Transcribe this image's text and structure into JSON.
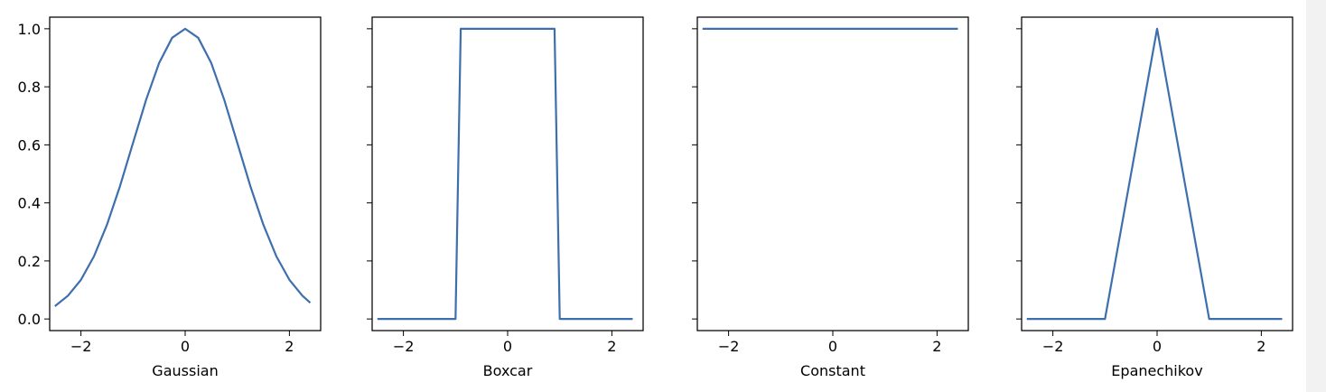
{
  "chart_data": [
    {
      "type": "line",
      "xlabel": "Gaussian",
      "xlim": [
        -2.6,
        2.6
      ],
      "ylim": [
        -0.04,
        1.04
      ],
      "xticks": [
        -2,
        0,
        2
      ],
      "yticks": [
        0.0,
        0.2,
        0.4,
        0.6,
        0.8,
        1.0
      ],
      "xtick_labels": [
        "−2",
        "0",
        "2"
      ],
      "ytick_labels": [
        "0.0",
        "0.2",
        "0.4",
        "0.6",
        "0.8",
        "1.0"
      ],
      "show_ytick_labels": true,
      "color": "#3e6fad",
      "x": [
        -2.5,
        -2.25,
        -2.0,
        -1.75,
        -1.5,
        -1.25,
        -1.0,
        -0.75,
        -0.5,
        -0.25,
        0.0,
        0.25,
        0.5,
        0.75,
        1.0,
        1.25,
        1.5,
        1.75,
        2.0,
        2.25,
        2.4
      ],
      "y": [
        0.044,
        0.08,
        0.135,
        0.216,
        0.325,
        0.458,
        0.607,
        0.755,
        0.882,
        0.969,
        1.0,
        0.969,
        0.882,
        0.755,
        0.607,
        0.458,
        0.325,
        0.216,
        0.135,
        0.08,
        0.056
      ]
    },
    {
      "type": "line",
      "xlabel": "Boxcar",
      "xlim": [
        -2.6,
        2.6
      ],
      "ylim": [
        -0.04,
        1.04
      ],
      "xticks": [
        -2,
        0,
        2
      ],
      "yticks": [
        0.0,
        0.2,
        0.4,
        0.6,
        0.8,
        1.0
      ],
      "xtick_labels": [
        "−2",
        "0",
        "2"
      ],
      "ytick_labels": [
        "",
        "",
        "",
        "",
        "",
        ""
      ],
      "show_ytick_labels": false,
      "color": "#3e6fad",
      "x": [
        -2.5,
        -1.0,
        -0.9,
        0.9,
        1.0,
        2.4
      ],
      "y": [
        0.0,
        0.0,
        1.0,
        1.0,
        0.0,
        0.0
      ]
    },
    {
      "type": "line",
      "xlabel": "Constant",
      "xlim": [
        -2.6,
        2.6
      ],
      "ylim": [
        -0.04,
        1.04
      ],
      "xticks": [
        -2,
        0,
        2
      ],
      "yticks": [
        0.0,
        0.2,
        0.4,
        0.6,
        0.8,
        1.0
      ],
      "xtick_labels": [
        "−2",
        "0",
        "2"
      ],
      "ytick_labels": [
        "",
        "",
        "",
        "",
        "",
        ""
      ],
      "show_ytick_labels": false,
      "color": "#3e6fad",
      "x": [
        -2.5,
        2.4
      ],
      "y": [
        1.0,
        1.0
      ]
    },
    {
      "type": "line",
      "xlabel": "Epanechikov",
      "xlim": [
        -2.6,
        2.6
      ],
      "ylim": [
        -0.04,
        1.04
      ],
      "xticks": [
        -2,
        0,
        2
      ],
      "yticks": [
        0.0,
        0.2,
        0.4,
        0.6,
        0.8,
        1.0
      ],
      "xtick_labels": [
        "−2",
        "0",
        "2"
      ],
      "ytick_labels": [
        "",
        "",
        "",
        "",
        "",
        ""
      ],
      "show_ytick_labels": false,
      "color": "#3e6fad",
      "x": [
        -2.5,
        -1.0,
        0.0,
        1.0,
        2.4
      ],
      "y": [
        0.0,
        0.0,
        1.0,
        0.0,
        0.0
      ]
    }
  ]
}
